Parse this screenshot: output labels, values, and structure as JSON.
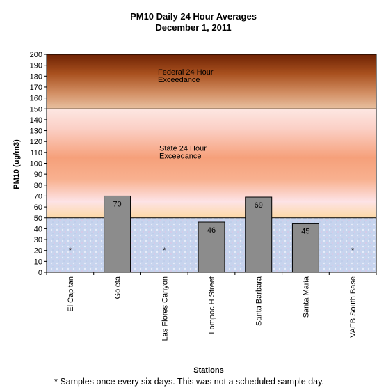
{
  "chart_data": {
    "type": "bar",
    "title": "PM10 Daily 24 Hour Averages",
    "subtitle": "December 1, 2011",
    "xlabel": "Stations",
    "ylabel": "PM10 (ug/m3)",
    "ylim": [
      0,
      200
    ],
    "ytick_step": 10,
    "categories": [
      "El Capitan",
      "Goleta",
      "Las Flores Canyon",
      "Lompoc H Street",
      "Santa Barbara",
      "Santa Maria",
      "VAFB South Base"
    ],
    "values": [
      null,
      70,
      null,
      46,
      69,
      45,
      null
    ],
    "data_labels": [
      "*",
      "70",
      "*",
      "46",
      "69",
      "45",
      "*"
    ],
    "bands": [
      {
        "label_line1": "Federal 24 Hour",
        "label_line2": "Exceedance",
        "from": 150,
        "to": 200,
        "color": "#7a2a06"
      },
      {
        "label_line1": "State 24 Hour",
        "label_line2": "Exceedance",
        "from": 50,
        "to": 150,
        "color": "#f7a478"
      },
      {
        "label_line1": "",
        "label_line2": "",
        "from": 0,
        "to": 50,
        "color": "#c9d6ef"
      }
    ],
    "thresholds": [
      50,
      150
    ],
    "bar_color": "#8c8c8c",
    "footnote": "*  Samples once every six days.  This was not a scheduled sample day."
  }
}
